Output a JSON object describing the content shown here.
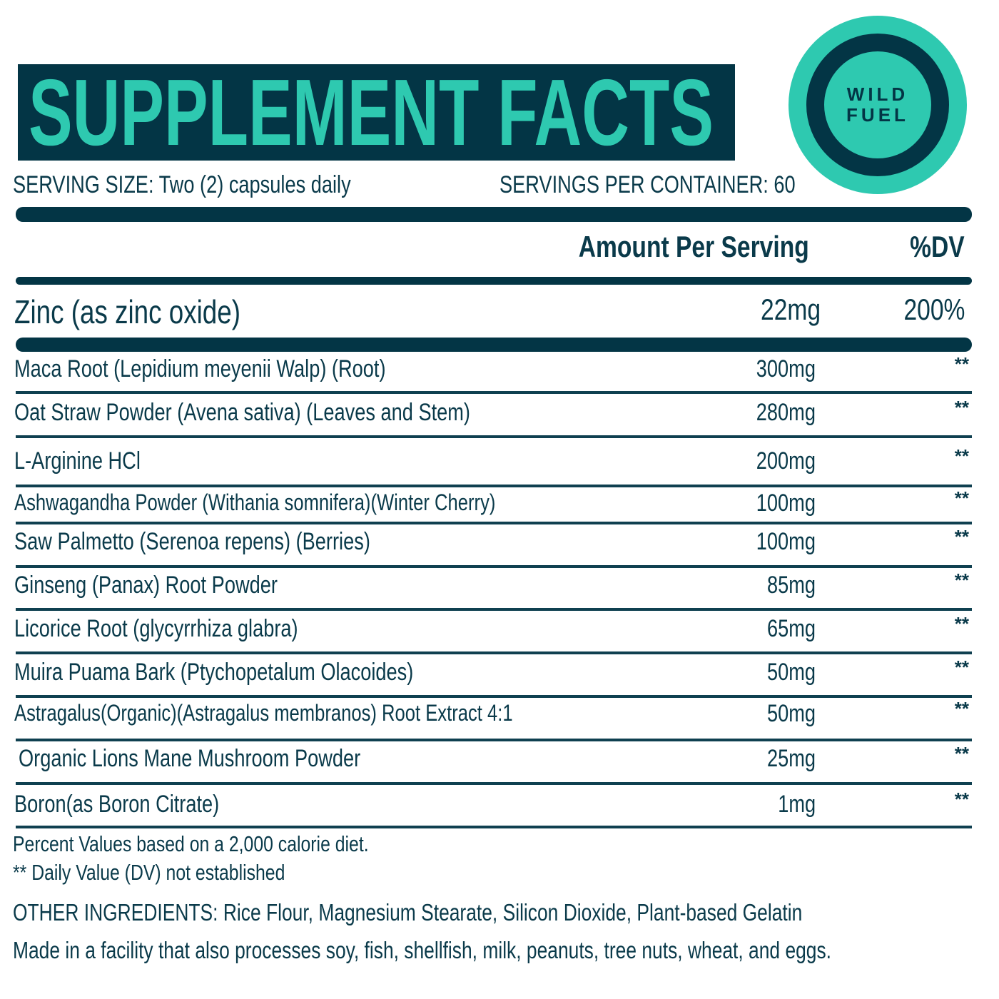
{
  "header": {
    "title": "SUPPLEMENT FACTS",
    "logo_text": [
      "WILD",
      "FUEL"
    ],
    "serving_size": "SERVING SIZE: Two (2) capsules daily",
    "servings_per_container": "SERVINGS PER CONTAINER: 60"
  },
  "columns": {
    "amount": "Amount Per Serving",
    "dv": "%DV"
  },
  "highlight": {
    "name": "Zinc (as zinc oxide)",
    "amount": "22mg",
    "dv": "200%"
  },
  "ingredients": [
    {
      "name": "Maca Root (Lepidium meyenii Walp) (Root)",
      "amount": "300mg",
      "dv": "**"
    },
    {
      "name": "Oat Straw Powder (Avena sativa) (Leaves and Stem)",
      "amount": "280mg",
      "dv": "**"
    },
    {
      "name": "L-Arginine HCl",
      "amount": "200mg",
      "dv": "**"
    },
    {
      "name": "Ashwagandha Powder (Withania somnifera)(Winter Cherry)",
      "amount": "100mg",
      "dv": "**"
    },
    {
      "name": "Saw Palmetto (Serenoa repens) (Berries)",
      "amount": "100mg",
      "dv": "**"
    },
    {
      "name": "Ginseng (Panax) Root Powder",
      "amount": "85mg",
      "dv": "**"
    },
    {
      "name": "Licorice Root (glycyrrhiza glabra)",
      "amount": "65mg",
      "dv": "**"
    },
    {
      "name": "Muira Puama Bark (Ptychopetalum Olacoides)",
      "amount": "50mg",
      "dv": "**"
    },
    {
      "name": "Astragalus(Organic)(Astragalus membranos) Root Extract 4:1",
      "amount": "50mg",
      "dv": "**"
    },
    {
      "name": "Organic Lions Mane Mushroom Powder",
      "amount": "25mg",
      "dv": "**"
    },
    {
      "name": "Boron(as Boron Citrate)",
      "amount": "1mg",
      "dv": "**"
    }
  ],
  "footer": {
    "percent_note": "Percent Values based on a 2,000 calorie diet.",
    "dv_note": "** Daily Value (DV) not established",
    "other_ingredients": "OTHER INGREDIENTS: Rice Flour, Magnesium Stearate, Silicon Dioxide, Plant-based Gelatin",
    "allergen": "Made in a facility that also processes soy, fish, shellfish, milk, peanuts, tree nuts, wheat, and eggs."
  },
  "colors": {
    "dark": "#033545",
    "teal": "#2ec9b0"
  }
}
